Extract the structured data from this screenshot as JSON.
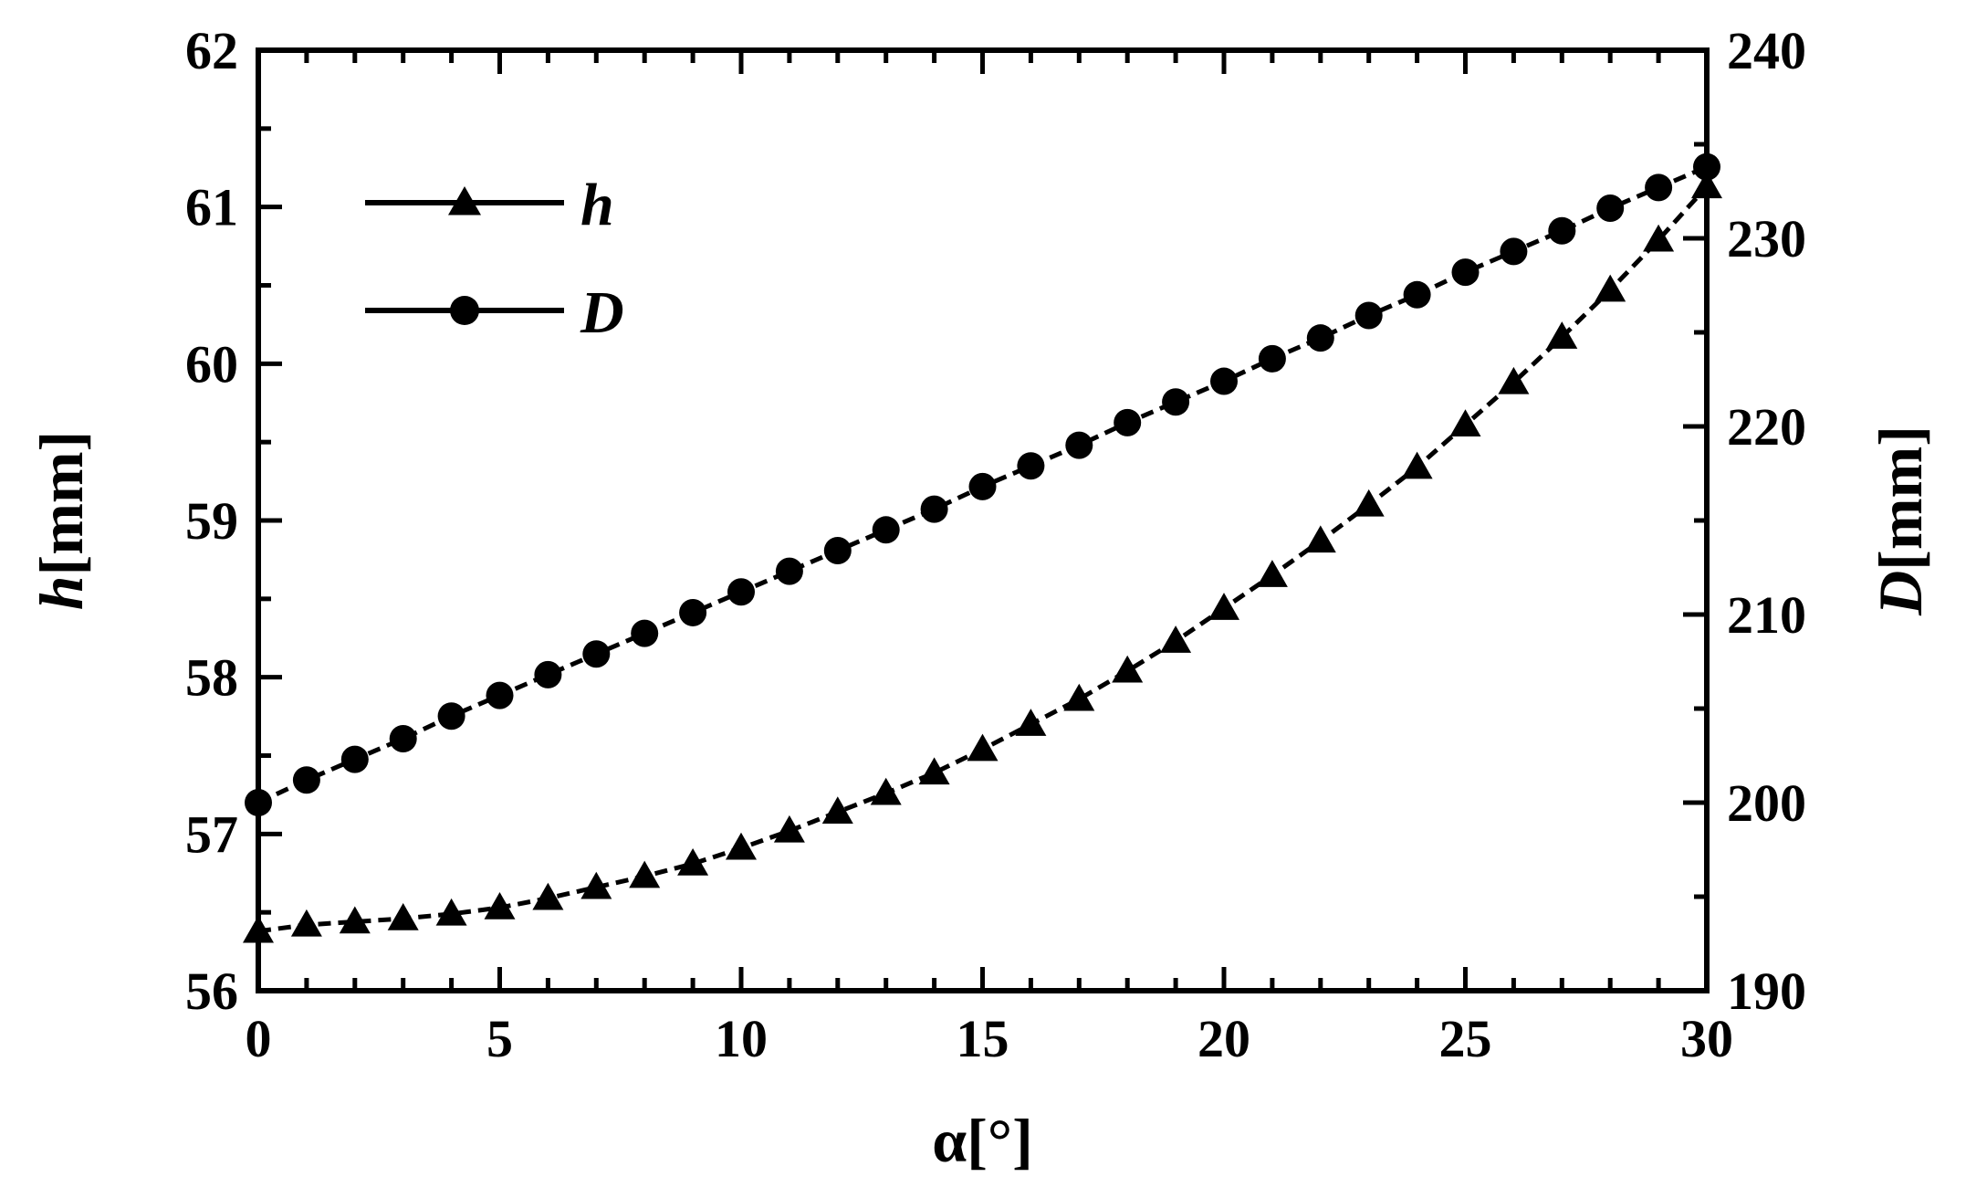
{
  "chart_data": {
    "type": "line",
    "x": [
      0,
      1,
      2,
      3,
      4,
      5,
      6,
      7,
      8,
      9,
      10,
      11,
      12,
      13,
      14,
      15,
      16,
      17,
      18,
      19,
      20,
      21,
      22,
      23,
      24,
      25,
      26,
      27,
      28,
      29,
      30
    ],
    "xlim": [
      0,
      30
    ],
    "xticks": [
      0,
      5,
      10,
      15,
      20,
      25,
      30
    ],
    "xlabel": {
      "main": "α",
      "unit": "[°]"
    },
    "y_left": {
      "lim": [
        56,
        62
      ],
      "ticks": [
        56,
        57,
        58,
        59,
        60,
        61,
        62
      ],
      "label": {
        "var": "h",
        "unit": "[mm]"
      }
    },
    "y_right": {
      "lim": [
        190,
        240
      ],
      "ticks": [
        190,
        200,
        210,
        220,
        230,
        240
      ],
      "label": {
        "var": "D",
        "unit": "[mm]"
      }
    },
    "series": [
      {
        "name": "h",
        "axis": "left",
        "marker": "triangle",
        "color": "#000000",
        "values": [
          56.38,
          56.42,
          56.44,
          56.46,
          56.49,
          56.53,
          56.59,
          56.66,
          56.73,
          56.81,
          56.91,
          57.02,
          57.14,
          57.26,
          57.39,
          57.54,
          57.7,
          57.86,
          58.04,
          58.23,
          58.44,
          58.65,
          58.87,
          59.1,
          59.34,
          59.61,
          59.88,
          60.17,
          60.47,
          60.79,
          61.13
        ]
      },
      {
        "name": "D",
        "axis": "right",
        "marker": "circle",
        "color": "#000000",
        "values": [
          200.0,
          201.2,
          202.3,
          203.4,
          204.6,
          205.7,
          206.8,
          207.9,
          209.0,
          210.1,
          211.2,
          212.3,
          213.4,
          214.5,
          215.6,
          216.8,
          217.9,
          219.0,
          220.2,
          221.3,
          222.4,
          223.6,
          224.7,
          225.9,
          227.0,
          228.2,
          229.3,
          230.4,
          231.6,
          232.7,
          233.8
        ]
      }
    ],
    "legend": {
      "placement": "top-left"
    },
    "grid": false
  }
}
